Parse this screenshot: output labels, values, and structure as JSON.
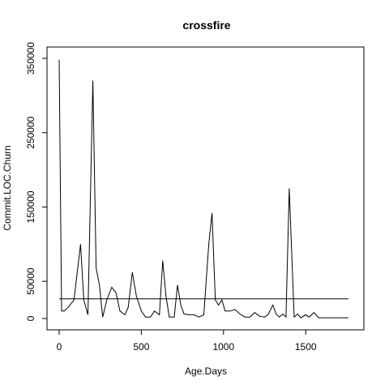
{
  "chart_data": {
    "type": "line",
    "title": "crossfire",
    "xlabel": "Age.Days",
    "ylabel": "Commit.LOC.Churn",
    "xlim": [
      0,
      1780
    ],
    "ylim": [
      0,
      350000
    ],
    "x_ticks": [
      0,
      500,
      1000,
      1500
    ],
    "x_tick_labels": [
      "0",
      "500",
      "1000",
      "1500"
    ],
    "y_ticks": [
      0,
      50000,
      150000,
      250000,
      350000
    ],
    "y_tick_labels": [
      "0",
      "50000",
      "150000",
      "250000",
      "350000"
    ],
    "grid": false,
    "series": [
      {
        "x": [
          0,
          15,
          30,
          55,
          90,
          130,
          150,
          175,
          205,
          225,
          245,
          265,
          290,
          320,
          345,
          370,
          400,
          420,
          445,
          470,
          500,
          525,
          555,
          580,
          610,
          630,
          650,
          670,
          700,
          720,
          740,
          760,
          790,
          820,
          850,
          880,
          910,
          930,
          950,
          970,
          990,
          1010,
          1040,
          1070,
          1100,
          1130,
          1160,
          1190,
          1220,
          1250,
          1270,
          1300,
          1320,
          1340,
          1360,
          1380,
          1400,
          1430,
          1450,
          1470,
          1500,
          1520,
          1550,
          1580,
          1600,
          1650,
          1700,
          1760
        ],
        "y": [
          348000,
          10000,
          10000,
          15000,
          25000,
          100000,
          25000,
          5000,
          320000,
          68000,
          45000,
          2000,
          25000,
          42000,
          35000,
          10000,
          5000,
          15000,
          62000,
          30000,
          10000,
          2000,
          2000,
          10000,
          5000,
          78000,
          30000,
          2000,
          2000,
          45000,
          18000,
          6000,
          5000,
          5000,
          2000,
          5000,
          100000,
          142000,
          25000,
          18000,
          25000,
          10000,
          10000,
          12000,
          6000,
          2000,
          2000,
          8000,
          3000,
          2000,
          5000,
          18000,
          6000,
          2000,
          6000,
          2000,
          175000,
          2000,
          6000,
          1000,
          5000,
          2000,
          8000,
          1000,
          1000,
          1000,
          1000,
          1000
        ]
      },
      {
        "x": [
          0,
          1760
        ],
        "y": [
          26500,
          26500
        ]
      }
    ]
  }
}
